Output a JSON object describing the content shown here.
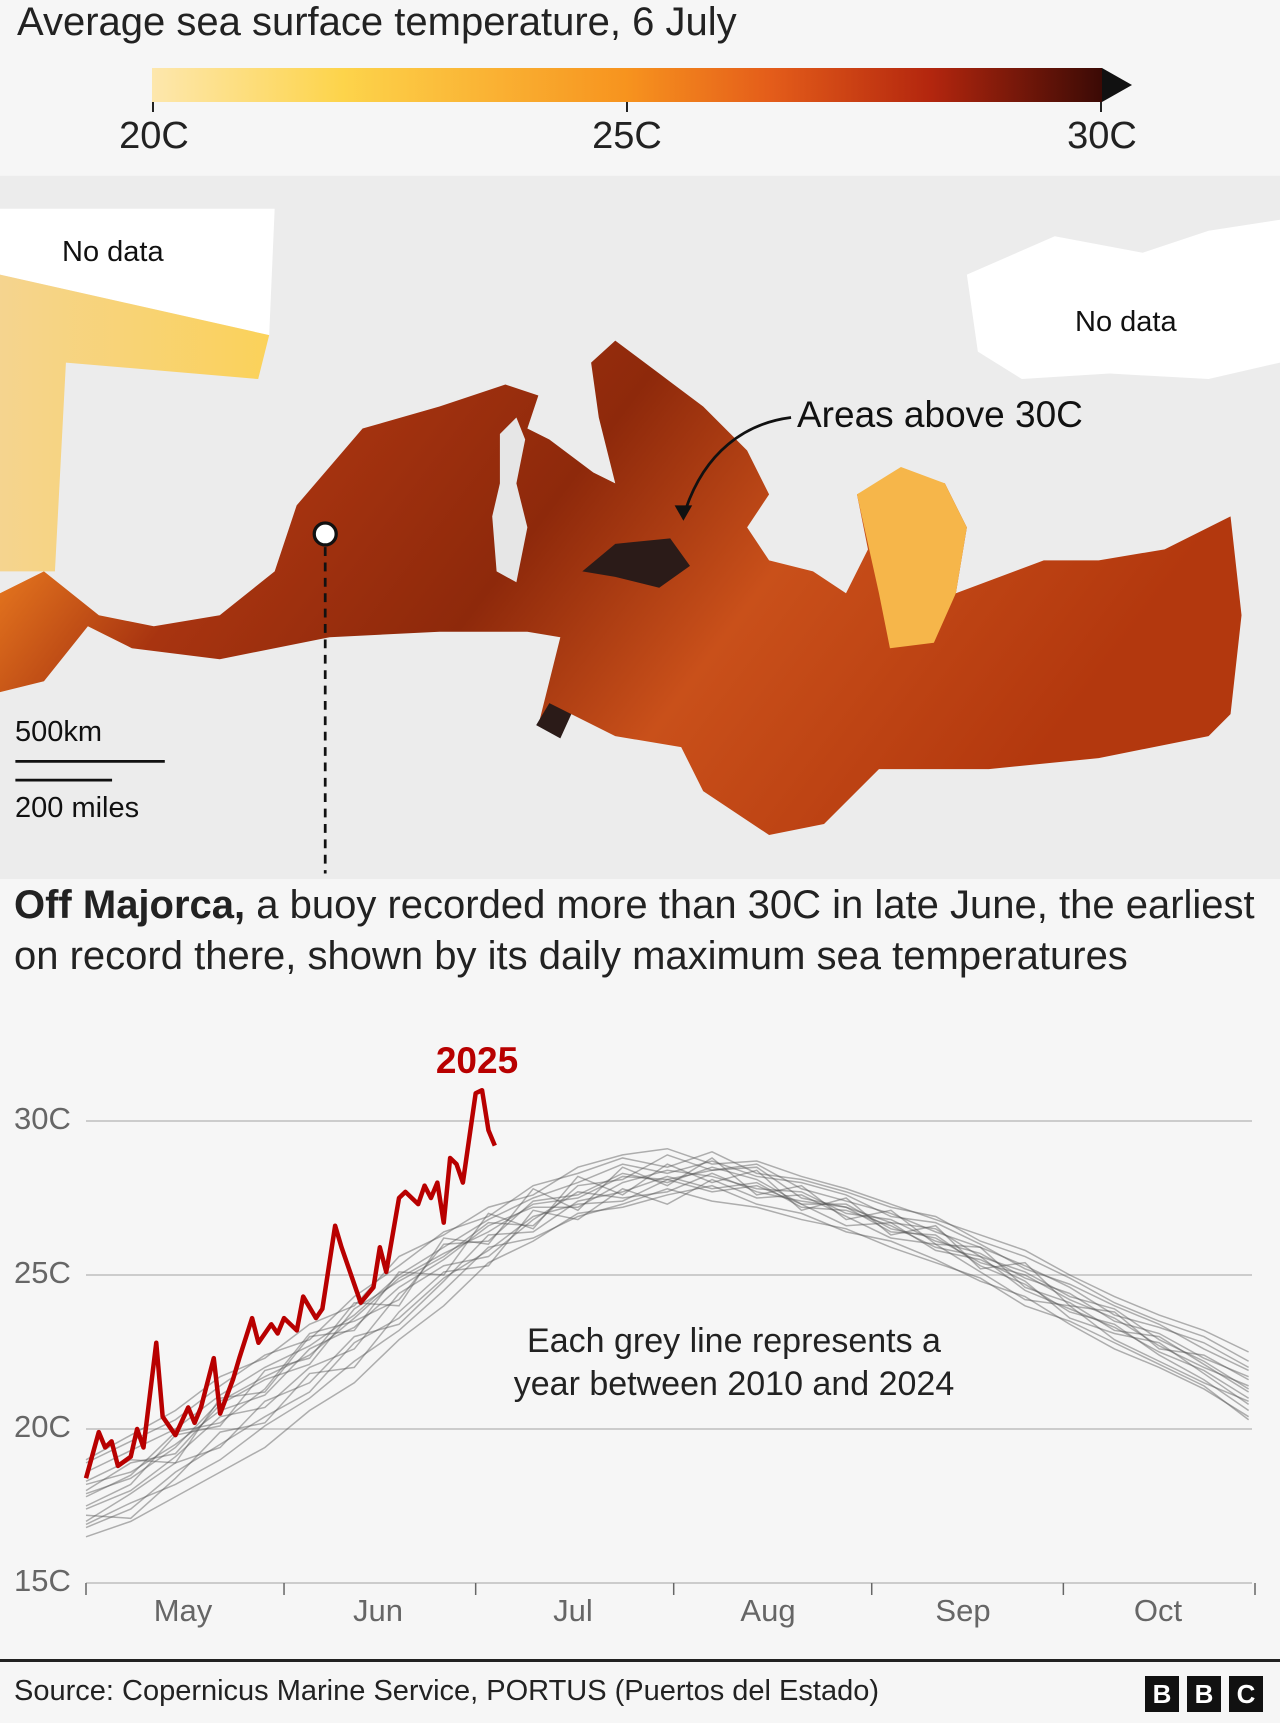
{
  "title": "Average sea surface temperature, 6 July",
  "colorbar": {
    "ticks": [
      "20C",
      "25C",
      "30C"
    ],
    "colors": [
      "#fde7ad",
      "#fdd44b",
      "#f7931e",
      "#e45d1a",
      "#b3260e",
      "#3b0a05"
    ]
  },
  "map": {
    "no_data_left": "No data",
    "no_data_right": "No data",
    "annotation": "Areas above 30C",
    "scale_km": "500km",
    "scale_miles": "200 miles",
    "sea_colors": {
      "warm": "#e8791f",
      "hot": "#9a2e0c",
      "aegean": "#f6b64a",
      "above30": "#2b1b18"
    }
  },
  "headline": {
    "bold": "Off Majorca,",
    "rest": " a buoy recorded more than 30C in late June, the earliest on record there, shown by its daily maximum sea temperatures"
  },
  "chart_data": {
    "type": "line",
    "ylim": [
      15,
      32
    ],
    "yticks": [
      "15C",
      "20C",
      "25C",
      "30C"
    ],
    "ytick_values": [
      15,
      20,
      25,
      30
    ],
    "xlim": [
      "05-01",
      "10-31"
    ],
    "xticks": [
      "May",
      "Jun",
      "Jul",
      "Aug",
      "Sep",
      "Oct"
    ],
    "grid": true,
    "annotation": [
      "Each grey line represents a",
      "year between 2010 and 2024"
    ],
    "highlight": {
      "name": "2025",
      "color": "#b80000",
      "dates": [
        "05-01",
        "05-03",
        "05-04",
        "05-05",
        "05-06",
        "05-08",
        "05-09",
        "05-10",
        "05-12",
        "05-13",
        "05-15",
        "05-17",
        "05-18",
        "05-19",
        "05-21",
        "05-22",
        "05-24",
        "05-25",
        "05-27",
        "05-28",
        "05-30",
        "05-31",
        "06-01",
        "06-03",
        "06-04",
        "06-06",
        "06-07",
        "06-09",
        "06-10",
        "06-13",
        "06-15",
        "06-16",
        "06-17",
        "06-19",
        "06-20",
        "06-22",
        "06-23",
        "06-24",
        "06-25",
        "06-26",
        "06-27",
        "06-28",
        "06-29",
        "07-01",
        "07-02",
        "07-03",
        "07-04"
      ],
      "values": [
        18.4,
        19.9,
        19.4,
        19.6,
        18.8,
        19.1,
        20.0,
        19.4,
        22.8,
        20.4,
        19.8,
        20.7,
        20.2,
        20.7,
        22.3,
        20.5,
        21.6,
        22.3,
        23.6,
        22.8,
        23.4,
        23.1,
        23.6,
        23.2,
        24.3,
        23.6,
        23.9,
        26.6,
        25.9,
        24.1,
        24.6,
        25.9,
        25.1,
        27.5,
        27.7,
        27.3,
        27.9,
        27.5,
        28.0,
        26.7,
        28.8,
        28.6,
        28.0,
        30.9,
        31.0,
        29.7,
        29.2
      ]
    },
    "grey_color": "#555555",
    "grey_dates": [
      "05-01",
      "05-08",
      "05-15",
      "05-22",
      "05-29",
      "06-05",
      "06-12",
      "06-19",
      "06-26",
      "07-03",
      "07-10",
      "07-17",
      "07-24",
      "07-31",
      "08-07",
      "08-14",
      "08-21",
      "08-28",
      "09-04",
      "09-11",
      "09-18",
      "09-25",
      "10-02",
      "10-09",
      "10-16",
      "10-23",
      "10-30"
    ],
    "grey_series": [
      [
        17.5,
        18.2,
        19.8,
        20.1,
        21.9,
        22.3,
        24.1,
        24.0,
        26.2,
        26.0,
        27.8,
        27.1,
        28.5,
        27.9,
        28.8,
        27.6,
        27.9,
        26.8,
        27.1,
        26.0,
        25.9,
        24.6,
        24.1,
        23.2,
        23.0,
        22.1,
        21.2
      ],
      [
        18.3,
        19.0,
        18.9,
        21.0,
        21.2,
        23.0,
        23.2,
        25.1,
        25.0,
        27.0,
        26.5,
        28.2,
        27.6,
        28.6,
        28.0,
        28.4,
        27.1,
        27.5,
        26.3,
        26.6,
        25.2,
        25.4,
        24.0,
        23.8,
        22.6,
        22.4,
        21.6
      ],
      [
        16.8,
        17.4,
        18.6,
        19.5,
        20.4,
        21.2,
        22.8,
        23.6,
        24.9,
        25.8,
        26.9,
        27.3,
        27.4,
        28.1,
        27.7,
        27.9,
        27.3,
        26.6,
        26.7,
        25.8,
        25.5,
        24.8,
        23.6,
        23.1,
        22.8,
        21.8,
        20.8
      ],
      [
        18.9,
        19.6,
        20.3,
        21.4,
        22.4,
        22.9,
        24.3,
        25.3,
        26.4,
        26.9,
        27.9,
        28.3,
        28.8,
        28.5,
        29.0,
        28.3,
        28.1,
        27.7,
        27.2,
        26.9,
        26.1,
        25.6,
        24.9,
        24.1,
        23.5,
        23.0,
        22.2
      ],
      [
        17.2,
        17.1,
        18.4,
        19.9,
        20.2,
        21.8,
        22.0,
        23.8,
        25.1,
        25.3,
        27.1,
        26.8,
        27.8,
        27.3,
        28.1,
        27.5,
        27.6,
        26.9,
        26.2,
        26.0,
        25.1,
        24.2,
        24.0,
        22.9,
        22.2,
        21.5,
        20.9
      ],
      [
        18.0,
        18.9,
        19.2,
        20.8,
        21.6,
        22.1,
        23.9,
        24.8,
        25.6,
        26.7,
        26.6,
        27.9,
        28.1,
        28.9,
        28.4,
        28.6,
        27.8,
        27.4,
        27.0,
        26.4,
        25.9,
        25.3,
        24.6,
        23.7,
        23.3,
        22.8,
        22.0
      ],
      [
        17.8,
        18.5,
        19.9,
        20.2,
        21.3,
        23.1,
        23.5,
        24.2,
        26.0,
        26.1,
        27.4,
        27.6,
        28.3,
        28.0,
        28.5,
        28.1,
        27.3,
        27.3,
        26.5,
        26.2,
        25.4,
        25.0,
        24.2,
        23.6,
        22.7,
        22.0,
        21.4
      ],
      [
        16.5,
        17.0,
        17.8,
        18.6,
        19.4,
        20.6,
        21.5,
        22.9,
        24.0,
        25.4,
        26.1,
        27.0,
        27.2,
        27.6,
        27.9,
        27.3,
        27.0,
        26.4,
        26.1,
        25.5,
        24.8,
        24.3,
        23.4,
        22.6,
        22.0,
        21.3,
        20.4
      ],
      [
        18.6,
        19.3,
        20.0,
        21.1,
        22.0,
        22.7,
        23.7,
        25.0,
        25.9,
        26.8,
        27.5,
        28.0,
        28.6,
        28.3,
        28.7,
        28.2,
        28.0,
        27.6,
        26.9,
        26.7,
        26.0,
        25.2,
        24.7,
        24.0,
        23.4,
        22.6,
        21.9
      ],
      [
        17.0,
        17.9,
        18.9,
        19.4,
        20.9,
        21.5,
        23.0,
        23.4,
        24.8,
        26.3,
        26.4,
        27.4,
        27.7,
        28.2,
        27.8,
        28.0,
        27.2,
        27.1,
        26.6,
        25.9,
        25.6,
        24.5,
        23.9,
        23.3,
        22.5,
        21.9,
        21.0
      ],
      [
        18.2,
        18.6,
        19.5,
        20.6,
        21.1,
        22.6,
        23.3,
        24.6,
        25.5,
        26.6,
        27.2,
        27.2,
        28.0,
        28.4,
        28.2,
        27.8,
        27.7,
        27.0,
        26.8,
        26.1,
        25.7,
        24.9,
        24.4,
        23.5,
        23.1,
        22.3,
        21.7
      ],
      [
        17.4,
        18.0,
        19.1,
        20.4,
        20.7,
        22.0,
        22.6,
        24.4,
        25.3,
        25.6,
        26.8,
        27.7,
        27.5,
        27.7,
        28.3,
        27.7,
        27.4,
        27.2,
        26.4,
        26.3,
        25.3,
        24.7,
        23.8,
        23.4,
        22.4,
        21.6,
        20.6
      ],
      [
        19.0,
        19.8,
        20.6,
        21.7,
        22.3,
        23.4,
        24.0,
        25.6,
        26.3,
        27.2,
        27.6,
        28.5,
        28.9,
        29.1,
        28.6,
        28.7,
        28.2,
        27.8,
        27.3,
        26.8,
        26.3,
        25.8,
        25.0,
        24.3,
        23.7,
        23.2,
        22.5
      ],
      [
        16.9,
        17.6,
        18.2,
        19.0,
        20.1,
        21.0,
        22.2,
        23.2,
        24.5,
        25.9,
        26.2,
        26.9,
        27.3,
        27.8,
        27.4,
        27.2,
        26.8,
        26.5,
        25.9,
        25.4,
        24.9,
        24.0,
        23.5,
        22.8,
        22.1,
        21.4,
        20.3
      ],
      [
        17.9,
        18.4,
        19.4,
        20.9,
        21.7,
        22.4,
        23.6,
        24.9,
        25.7,
        26.4,
        27.3,
        27.5,
        28.2,
        28.1,
        28.4,
        28.5,
        27.5,
        27.2,
        26.7,
        26.5,
        25.6,
        25.1,
        24.3,
        23.9,
        22.9,
        22.2,
        21.3
      ]
    ]
  },
  "footer": {
    "source": "Source: Copernicus Marine Service, PORTUS (Puertos del Estado)",
    "logo": [
      "B",
      "B",
      "C"
    ]
  }
}
